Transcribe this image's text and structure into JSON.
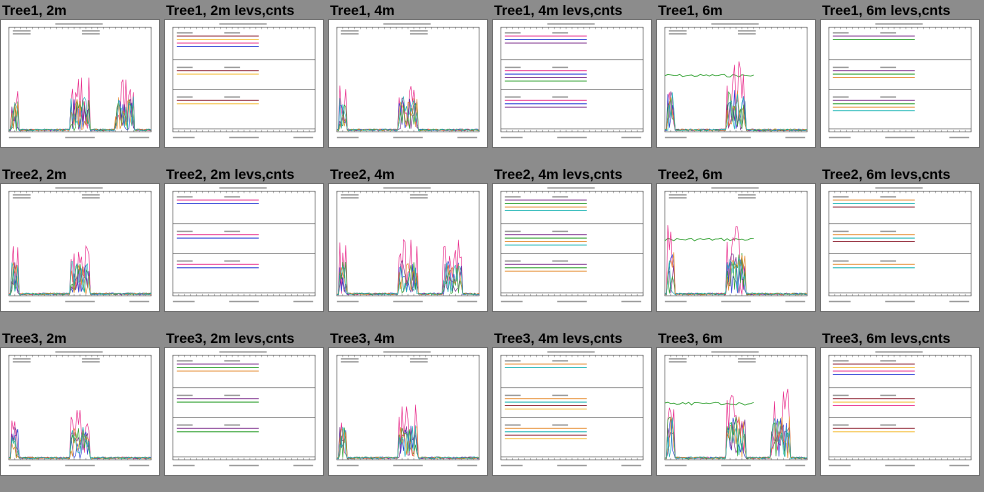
{
  "rows": [
    {
      "row": "Tree1",
      "cells": [
        {
          "title": "Tree1, 2m",
          "kind": "ts"
        },
        {
          "title": "Tree1, 2m levs,cnts",
          "kind": "levs"
        },
        {
          "title": "Tree1, 4m",
          "kind": "ts"
        },
        {
          "title": "Tree1, 4m levs,cnts",
          "kind": "levs"
        },
        {
          "title": "Tree1, 6m",
          "kind": "ts"
        },
        {
          "title": "Tree1, 6m levs,cnts",
          "kind": "levs"
        }
      ]
    },
    {
      "row": "Tree2",
      "cells": [
        {
          "title": "Tree2, 2m",
          "kind": "ts"
        },
        {
          "title": "Tree2, 2m levs,cnts",
          "kind": "levs"
        },
        {
          "title": "Tree2, 4m",
          "kind": "ts"
        },
        {
          "title": "Tree2, 4m levs,cnts",
          "kind": "levs"
        },
        {
          "title": "Tree2, 6m",
          "kind": "ts"
        },
        {
          "title": "Tree2, 6m levs,cnts",
          "kind": "levs"
        }
      ]
    },
    {
      "row": "Tree3",
      "cells": [
        {
          "title": "Tree3, 2m",
          "kind": "ts"
        },
        {
          "title": "Tree3, 2m levs,cnts",
          "kind": "levs"
        },
        {
          "title": "Tree3, 4m",
          "kind": "ts"
        },
        {
          "title": "Tree3, 4m levs,cnts",
          "kind": "levs"
        },
        {
          "title": "Tree3, 6m",
          "kind": "ts"
        },
        {
          "title": "Tree3, 6m levs,cnts",
          "kind": "levs"
        }
      ]
    }
  ],
  "colors": {
    "background": "#8c8c8c",
    "thumb_bg": "#ffffff",
    "series": [
      "#e8298a",
      "#2c3fd6",
      "#7a2a8a",
      "#2e9f2e",
      "#e58a2c",
      "#1fb5b5",
      "#8a1a2a",
      "#f5c040"
    ]
  }
}
